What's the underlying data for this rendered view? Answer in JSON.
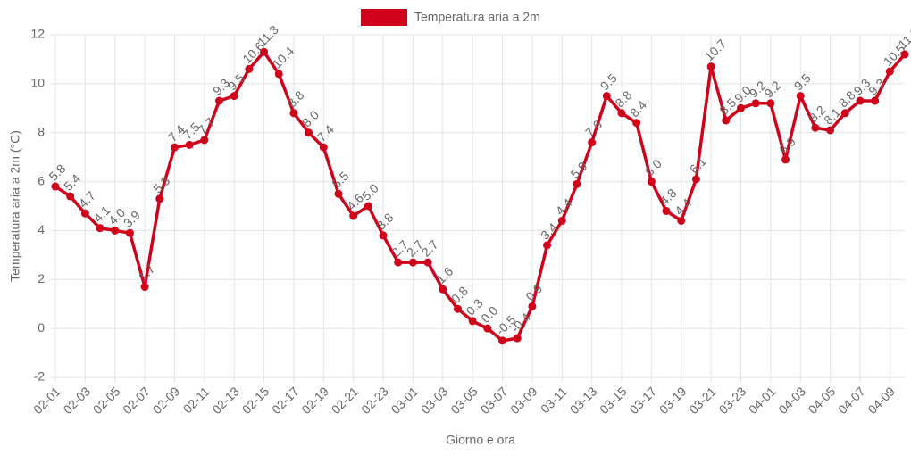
{
  "chart_data": {
    "type": "line",
    "legend_label": "Temperatura aria a 2m",
    "x_label": "Giorno e ora",
    "y_label": "Temperatura aria a 2m (°C)",
    "categories": [
      "02-01",
      null,
      "02-03",
      null,
      "02-05",
      null,
      "02-07",
      null,
      "02-09",
      null,
      "02-11",
      null,
      "02-13",
      null,
      "02-15",
      null,
      "02-17",
      null,
      "02-19",
      null,
      "02-21",
      null,
      "02-23",
      null,
      "03-01",
      null,
      "03-03",
      null,
      "03-05",
      null,
      "03-07",
      null,
      "03-09",
      null,
      "03-11",
      null,
      "03-13",
      null,
      "03-15",
      null,
      "03-17",
      null,
      "03-19",
      null,
      "03-21",
      null,
      "03-23",
      null,
      "04-01",
      null,
      "04-03",
      null,
      "04-05",
      null,
      "04-07",
      null,
      "04-09",
      null
    ],
    "series": [
      {
        "name": "Temperatura aria a 2m",
        "color": "#d0021b",
        "values": [
          5.8,
          5.4,
          4.7,
          4.1,
          4.0,
          3.9,
          1.7,
          5.3,
          7.4,
          7.5,
          7.7,
          9.3,
          9.5,
          10.6,
          11.3,
          10.4,
          8.8,
          8.0,
          7.4,
          5.5,
          4.6,
          5.0,
          3.8,
          2.7,
          2.7,
          2.7,
          1.6,
          0.8,
          0.3,
          0.0,
          -0.5,
          -0.4,
          0.9,
          3.4,
          4.4,
          5.9,
          7.6,
          9.5,
          8.8,
          8.4,
          6.0,
          4.8,
          4.4,
          6.1,
          10.7,
          8.5,
          9.0,
          9.2,
          9.2,
          6.9,
          9.5,
          8.2,
          8.1,
          8.8,
          9.3,
          9.3,
          10.5,
          11.2
        ],
        "value_labels": [
          "5.8",
          "5.4",
          "4.7",
          "4.1",
          "4.0",
          "3.9",
          "1.7",
          "5.3",
          "7.4",
          "7.5",
          "7.7",
          "9.3",
          "9.5",
          "10.6",
          "11.3",
          "10.4",
          "8.8",
          "8.0",
          "7.4",
          "5.5",
          "4.6",
          "5.0",
          "3.8",
          "2.7",
          "2.7",
          "2.7",
          "1.6",
          "0.8",
          "0.3",
          "0.0",
          "-0.5",
          "-0.4",
          "0.9",
          "3.4",
          "4.4",
          "5.9",
          "7.6",
          "9.5",
          "8.8",
          "8.4",
          "6.0",
          "4.8",
          "4.4",
          "6.1",
          "10.7",
          "8.5",
          "9.0",
          "9.2",
          "9.2",
          "6.9",
          "9.5",
          "8.2",
          "8.1",
          "8.8",
          "9.3",
          "9.3",
          "10.5",
          "11.2"
        ]
      }
    ],
    "ylim": [
      -2,
      12
    ],
    "yticks": [
      -2,
      0,
      2,
      4,
      6,
      8,
      10,
      12
    ],
    "grid": true
  }
}
